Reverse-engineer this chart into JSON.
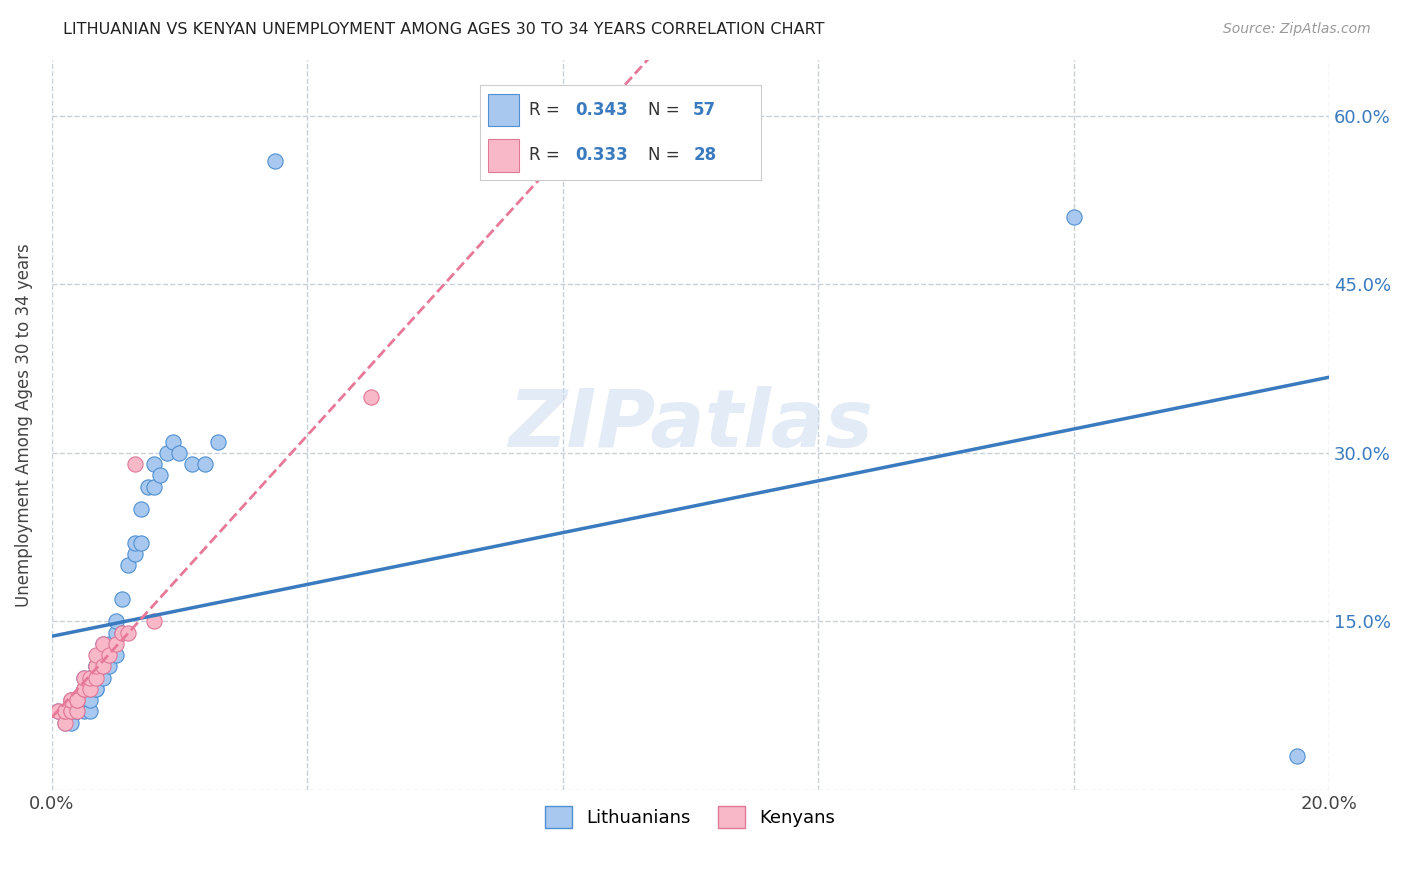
{
  "title": "LITHUANIAN VS KENYAN UNEMPLOYMENT AMONG AGES 30 TO 34 YEARS CORRELATION CHART",
  "source": "Source: ZipAtlas.com",
  "ylabel": "Unemployment Among Ages 30 to 34 years",
  "xlim": [
    0.0,
    0.2
  ],
  "ylim": [
    0.0,
    0.65
  ],
  "x_ticks": [
    0.0,
    0.04,
    0.08,
    0.12,
    0.16,
    0.2
  ],
  "y_ticks": [
    0.0,
    0.15,
    0.3,
    0.45,
    0.6
  ],
  "y_tick_labels_right": [
    "",
    "15.0%",
    "30.0%",
    "45.0%",
    "60.0%"
  ],
  "background_color": "#ffffff",
  "grid_color": "#c8d0d8",
  "watermark_text": "ZIPatlas",
  "blue_color": "#a8c8f0",
  "blue_edge_color": "#5090d0",
  "pink_color": "#f8b8c8",
  "pink_edge_color": "#e07898",
  "blue_line_color": "#3a7abf",
  "pink_line_color": "#e87898",
  "legend_box_color": "#f0f4ff",
  "lit_x": [
    0.001,
    0.002,
    0.002,
    0.002,
    0.003,
    0.003,
    0.003,
    0.003,
    0.004,
    0.004,
    0.004,
    0.004,
    0.004,
    0.005,
    0.005,
    0.005,
    0.005,
    0.005,
    0.006,
    0.006,
    0.006,
    0.006,
    0.006,
    0.007,
    0.007,
    0.007,
    0.007,
    0.007,
    0.008,
    0.008,
    0.008,
    0.009,
    0.009,
    0.009,
    0.01,
    0.01,
    0.01,
    0.011,
    0.011,
    0.012,
    0.013,
    0.013,
    0.014,
    0.014,
    0.015,
    0.016,
    0.016,
    0.017,
    0.018,
    0.019,
    0.02,
    0.022,
    0.024,
    0.026,
    0.035,
    0.16,
    0.195
  ],
  "lit_y": [
    0.07,
    0.06,
    0.07,
    0.07,
    0.06,
    0.07,
    0.07,
    0.08,
    0.07,
    0.07,
    0.07,
    0.08,
    0.08,
    0.07,
    0.08,
    0.08,
    0.09,
    0.1,
    0.07,
    0.08,
    0.09,
    0.1,
    0.1,
    0.09,
    0.09,
    0.1,
    0.11,
    0.11,
    0.1,
    0.11,
    0.13,
    0.11,
    0.12,
    0.13,
    0.12,
    0.14,
    0.15,
    0.14,
    0.17,
    0.2,
    0.21,
    0.22,
    0.22,
    0.25,
    0.27,
    0.27,
    0.29,
    0.28,
    0.3,
    0.31,
    0.3,
    0.29,
    0.29,
    0.31,
    0.56,
    0.51,
    0.03
  ],
  "ken_x": [
    0.001,
    0.002,
    0.002,
    0.002,
    0.003,
    0.003,
    0.003,
    0.003,
    0.004,
    0.004,
    0.004,
    0.005,
    0.005,
    0.005,
    0.006,
    0.006,
    0.007,
    0.007,
    0.007,
    0.008,
    0.008,
    0.009,
    0.01,
    0.011,
    0.012,
    0.013,
    0.016,
    0.05
  ],
  "ken_y": [
    0.07,
    0.06,
    0.07,
    0.07,
    0.07,
    0.07,
    0.08,
    0.08,
    0.07,
    0.08,
    0.08,
    0.09,
    0.09,
    0.1,
    0.09,
    0.1,
    0.1,
    0.11,
    0.12,
    0.11,
    0.13,
    0.12,
    0.13,
    0.14,
    0.14,
    0.29,
    0.15,
    0.35
  ]
}
